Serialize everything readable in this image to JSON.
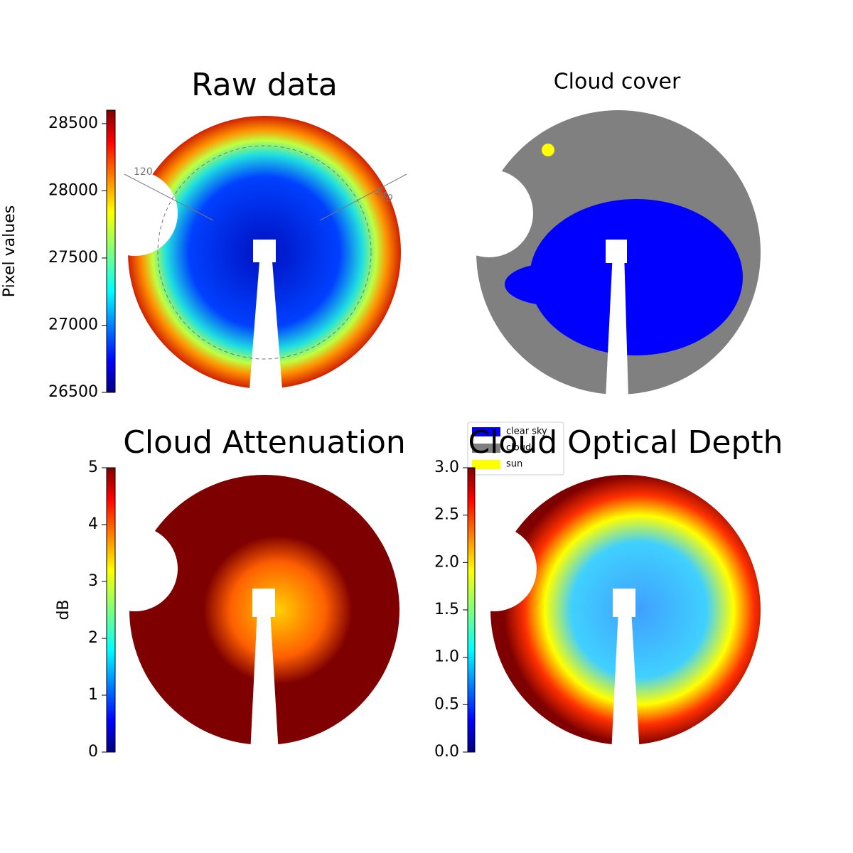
{
  "chart_data": [
    {
      "type": "image",
      "title": "Raw data",
      "colormap": "jet",
      "ylabel": "Pixel values",
      "ylim": [
        26500,
        28600
      ],
      "yticks": [
        26500,
        27000,
        27500,
        28000,
        28500
      ],
      "annotations": [
        "120",
        "140"
      ]
    },
    {
      "type": "image",
      "title": "Cloud cover",
      "series": [
        {
          "name": "clear sky",
          "color": "#0000ff"
        },
        {
          "name": "cloud",
          "color": "#808080"
        },
        {
          "name": "sun",
          "color": "#ffff00"
        }
      ]
    },
    {
      "type": "image",
      "title": "Cloud Attenuation",
      "colormap": "jet",
      "ylabel": "dB",
      "ylim": [
        0,
        5
      ],
      "yticks": [
        0,
        1,
        2,
        3,
        4,
        5
      ]
    },
    {
      "type": "image",
      "title": "Cloud Optical Depth",
      "colormap": "jet",
      "ylim": [
        0,
        3
      ],
      "yticks": [
        {
          "value": 0,
          "label": "0.0"
        },
        {
          "value": 0.5,
          "label": "0.5"
        },
        {
          "value": 1,
          "label": "1.0"
        },
        {
          "value": 1.5,
          "label": "1.5"
        },
        {
          "value": 2,
          "label": "2.0"
        },
        {
          "value": 2.5,
          "label": "2.5"
        },
        {
          "value": 3,
          "label": "3.0"
        }
      ]
    }
  ]
}
